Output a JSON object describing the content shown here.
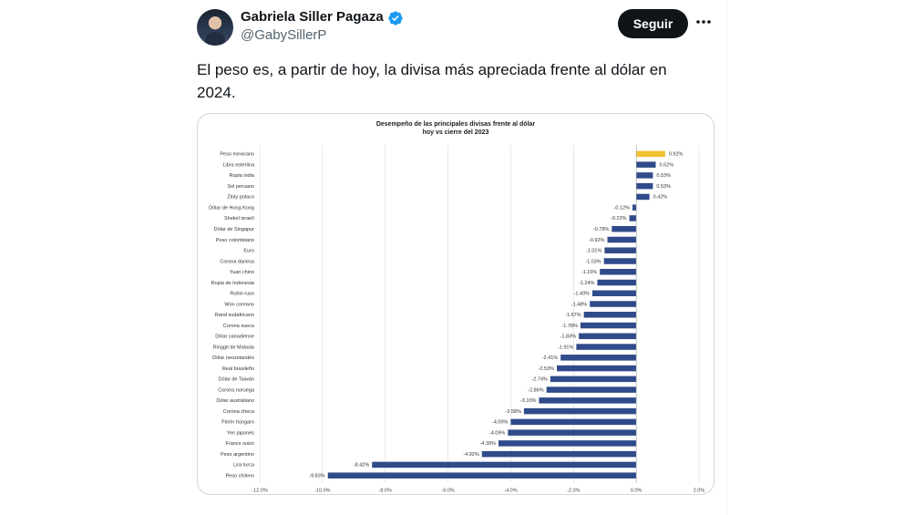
{
  "author": {
    "name": "Gabriela Siller Pagaza",
    "handle": "@GabySillerP",
    "verified": true,
    "avatar_icon": "profile-photo"
  },
  "actions": {
    "follow_label": "Seguir",
    "more_icon": "ellipsis-icon"
  },
  "tweet": {
    "text": "El peso es, a partir de hoy, la divisa más apreciada frente al dólar en 2024."
  },
  "colors": {
    "highlight_bar": "#f2c12e",
    "bar": "#2f4b8a",
    "verified": "#1d9bf0"
  },
  "chart_data": {
    "type": "bar",
    "orientation": "horizontal",
    "title": "Desempeño de las principales divisas frente al dólar",
    "subtitle": "hoy vs cierre del 2023",
    "categories": [
      "Peso mexicano",
      "Libra esterlina",
      "Rupia india",
      "Sol peruano",
      "Zloty polaco",
      "Dólar de Hong Kong",
      "Shekel israelí",
      "Dólar de Singapur",
      "Peso colombiano",
      "Euro",
      "Corona danesa",
      "Yuan chino",
      "Rupia de Indonesia",
      "Rublo ruso",
      "Won coreano",
      "Rand sudafricano",
      "Corona sueca",
      "Dólar canadiense",
      "Ringgit de Malasia",
      "Dólar neozelandés",
      "Real brasileño",
      "Dólar de Taiwán",
      "Corona noruega",
      "Dólar australiano",
      "Corona checa",
      "Florín húngaro",
      "Yen japonés",
      "Franco suizo",
      "Peso argentino",
      "Lira turca",
      "Peso chileno"
    ],
    "values": [
      0.92,
      0.62,
      0.53,
      0.53,
      0.42,
      -0.12,
      -0.22,
      -0.78,
      -0.92,
      -1.01,
      -1.03,
      -1.16,
      -1.24,
      -1.4,
      -1.48,
      -1.67,
      -1.78,
      -1.83,
      -1.91,
      -2.41,
      -2.53,
      -2.74,
      -2.86,
      -3.1,
      -3.58,
      -4.0,
      -4.09,
      -4.39,
      -4.92,
      -8.42,
      -9.83
    ],
    "value_labels": [
      "0.92%",
      "0.62%",
      "0.53%",
      "0.53%",
      "0.42%",
      "-0.12%",
      "-0.22%",
      "-0.78%",
      "-0.92%",
      "-1.01%",
      "-1.03%",
      "-1.16%",
      "-1.24%",
      "-1.40%",
      "-1.48%",
      "-1.67%",
      "-1.78%",
      "-1.83%",
      "-1.91%",
      "-2.41%",
      "-2.53%",
      "-2.74%",
      "-2.86%",
      "-3.10%",
      "-3.58%",
      "-4.00%",
      "-4.09%",
      "-4.39%",
      "-4.92%",
      "-8.42%",
      "-9.83%"
    ],
    "highlight_category": "Peso mexicano",
    "xlim": [
      -12.0,
      2.0
    ],
    "xticks": [
      -12.0,
      -10.0,
      -8.0,
      -6.0,
      -4.0,
      -2.0,
      0.0,
      2.0
    ],
    "xtick_labels": [
      "-12.0%",
      "-10.0%",
      "-8.0%",
      "-6.0%",
      "-4.0%",
      "-2.0%",
      "0.0%",
      "2.0%"
    ],
    "grid": true,
    "legend": "none"
  }
}
